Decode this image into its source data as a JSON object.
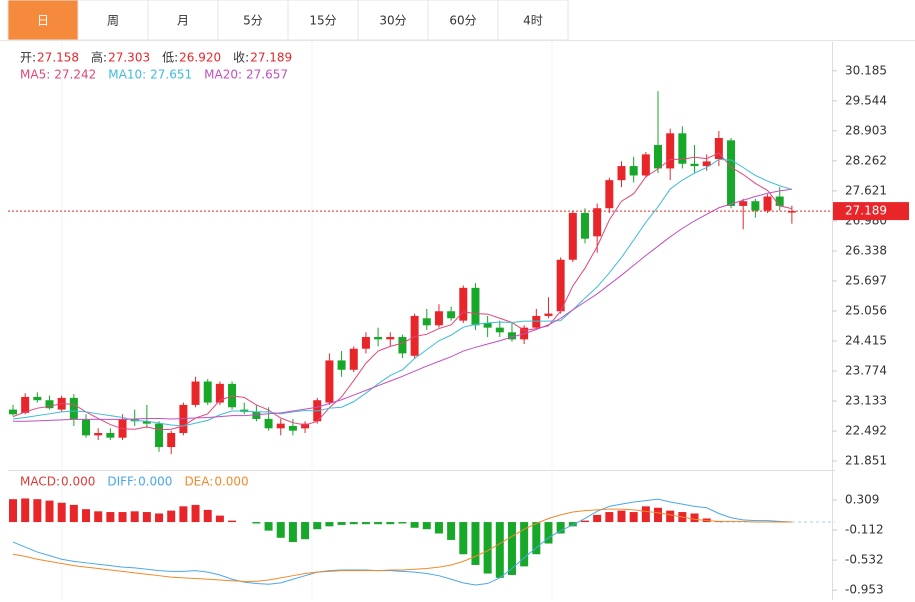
{
  "tabs": [
    "日",
    "周",
    "月",
    "5分",
    "15分",
    "30分",
    "60分",
    "4时"
  ],
  "active_tab": 0,
  "chart_data": [
    {
      "type": "candlestick",
      "info": [
        {
          "label": "开:",
          "value": "27.158"
        },
        {
          "label": "高:",
          "value": "27.303"
        },
        {
          "label": "低:",
          "value": "26.920"
        },
        {
          "label": "收:",
          "value": "27.189"
        }
      ],
      "up_color": "#e8262a",
      "down_color": "#17a82a",
      "candles": [
        [
          22.95,
          23.05,
          22.82,
          22.85
        ],
        [
          22.88,
          23.3,
          22.85,
          23.22
        ],
        [
          23.22,
          23.32,
          23.1,
          23.15
        ],
        [
          23.15,
          23.25,
          22.95,
          22.98
        ],
        [
          22.95,
          23.25,
          22.9,
          23.2
        ],
        [
          23.2,
          23.28,
          22.6,
          22.75
        ],
        [
          22.75,
          22.85,
          22.35,
          22.4
        ],
        [
          22.4,
          22.55,
          22.3,
          22.45
        ],
        [
          22.45,
          22.55,
          22.3,
          22.35
        ],
        [
          22.35,
          22.85,
          22.3,
          22.75
        ],
        [
          22.75,
          22.95,
          22.6,
          22.7
        ],
        [
          22.7,
          23.05,
          22.55,
          22.65
        ],
        [
          22.65,
          22.7,
          22.05,
          22.15
        ],
        [
          22.15,
          22.5,
          22.0,
          22.45
        ],
        [
          22.45,
          23.1,
          22.4,
          23.05
        ],
        [
          23.05,
          23.65,
          23.0,
          23.55
        ],
        [
          23.55,
          23.6,
          23.05,
          23.1
        ],
        [
          23.1,
          23.55,
          23.05,
          23.5
        ],
        [
          23.5,
          23.55,
          22.95,
          23.0
        ],
        [
          22.95,
          23.1,
          22.85,
          22.9
        ],
        [
          22.9,
          23.05,
          22.7,
          22.75
        ],
        [
          22.75,
          23.0,
          22.5,
          22.55
        ],
        [
          22.55,
          22.75,
          22.4,
          22.65
        ],
        [
          22.6,
          22.75,
          22.4,
          22.5
        ],
        [
          22.55,
          22.7,
          22.45,
          22.65
        ],
        [
          22.7,
          23.2,
          22.65,
          23.15
        ],
        [
          23.1,
          24.15,
          23.05,
          24.0
        ],
        [
          24.0,
          24.2,
          23.65,
          23.8
        ],
        [
          23.8,
          24.3,
          23.75,
          24.25
        ],
        [
          24.25,
          24.6,
          24.15,
          24.5
        ],
        [
          24.5,
          24.7,
          24.3,
          24.45
        ],
        [
          24.45,
          24.6,
          24.3,
          24.5
        ],
        [
          24.5,
          24.55,
          24.05,
          24.15
        ],
        [
          24.1,
          25.0,
          24.05,
          24.95
        ],
        [
          24.9,
          25.1,
          24.65,
          24.75
        ],
        [
          24.75,
          25.2,
          24.7,
          25.05
        ],
        [
          25.05,
          25.15,
          24.85,
          24.9
        ],
        [
          24.85,
          25.6,
          24.8,
          25.55
        ],
        [
          25.55,
          25.65,
          24.65,
          24.75
        ],
        [
          24.8,
          24.95,
          24.5,
          24.7
        ],
        [
          24.7,
          24.85,
          24.5,
          24.6
        ],
        [
          24.6,
          24.8,
          24.4,
          24.45
        ],
        [
          24.45,
          24.75,
          24.35,
          24.7
        ],
        [
          24.7,
          25.1,
          24.65,
          24.95
        ],
        [
          24.95,
          25.35,
          24.9,
          25.0
        ],
        [
          25.05,
          26.2,
          25.0,
          26.15
        ],
        [
          26.15,
          27.2,
          26.1,
          27.15
        ],
        [
          27.15,
          27.25,
          26.5,
          26.6
        ],
        [
          26.65,
          27.35,
          26.3,
          27.25
        ],
        [
          27.25,
          27.9,
          27.15,
          27.85
        ],
        [
          27.85,
          28.25,
          27.7,
          28.15
        ],
        [
          28.15,
          28.35,
          27.8,
          27.95
        ],
        [
          27.95,
          28.45,
          27.9,
          28.4
        ],
        [
          28.6,
          29.75,
          28.0,
          28.1
        ],
        [
          28.1,
          28.95,
          27.85,
          28.85
        ],
        [
          28.85,
          29.0,
          28.1,
          28.2
        ],
        [
          28.2,
          28.6,
          28.0,
          28.15
        ],
        [
          28.15,
          28.4,
          28.05,
          28.25
        ],
        [
          28.3,
          28.9,
          28.15,
          28.75
        ],
        [
          28.7,
          28.75,
          27.25,
          27.3
        ],
        [
          27.3,
          27.45,
          26.8,
          27.4
        ],
        [
          27.4,
          27.45,
          27.05,
          27.2
        ],
        [
          27.2,
          27.55,
          27.15,
          27.5
        ],
        [
          27.5,
          27.7,
          27.2,
          27.3
        ],
        [
          27.158,
          27.303,
          26.92,
          27.189
        ]
      ],
      "series": [
        {
          "name": "MA5:",
          "legend_value": "27.242",
          "color": "#e2457b",
          "values": [
            22.8,
            22.9,
            22.98,
            23.02,
            23.08,
            23.06,
            22.9,
            22.76,
            22.63,
            22.54,
            22.53,
            22.58,
            22.52,
            22.53,
            22.6,
            22.77,
            22.86,
            23.15,
            23.24,
            23.21,
            23.05,
            22.94,
            22.77,
            22.67,
            22.62,
            22.7,
            22.99,
            23.22,
            23.57,
            23.94,
            24.2,
            24.3,
            24.37,
            24.51,
            24.56,
            24.68,
            24.76,
            25.04,
            25.0,
            24.99,
            24.9,
            24.81,
            24.64,
            24.68,
            24.74,
            25.05,
            25.59,
            25.97,
            26.43,
            27.0,
            27.4,
            27.56,
            27.92,
            28.09,
            28.29,
            28.3,
            28.34,
            28.31,
            28.43,
            28.13,
            27.97,
            27.78,
            27.63,
            27.3,
            27.242
          ]
        },
        {
          "name": "MA10:",
          "legend_value": "27.651",
          "color": "#3fbcd8",
          "values": [
            22.75,
            22.78,
            22.82,
            22.86,
            22.9,
            22.92,
            22.9,
            22.86,
            22.82,
            22.78,
            22.72,
            22.7,
            22.66,
            22.62,
            22.6,
            22.66,
            22.72,
            22.84,
            22.92,
            22.92,
            22.9,
            22.9,
            22.86,
            22.9,
            22.93,
            22.92,
            22.98,
            23.0,
            23.12,
            23.3,
            23.5,
            23.68,
            23.8,
            24.04,
            24.23,
            24.42,
            24.54,
            24.71,
            24.77,
            24.8,
            24.82,
            24.81,
            24.84,
            24.84,
            24.84,
            24.85,
            25.08,
            25.33,
            25.57,
            25.87,
            26.2,
            26.57,
            26.95,
            27.28,
            27.66,
            27.85,
            28.0,
            28.12,
            28.29,
            28.28,
            28.12,
            27.95,
            27.83,
            27.73,
            27.651
          ]
        },
        {
          "name": "MA20:",
          "legend_value": "27.657",
          "color": "#c34fc1",
          "values": [
            22.7,
            22.7,
            22.71,
            22.72,
            22.73,
            22.74,
            22.74,
            22.74,
            22.74,
            22.74,
            22.75,
            22.76,
            22.76,
            22.75,
            22.76,
            22.77,
            22.78,
            22.8,
            22.82,
            22.82,
            22.84,
            22.86,
            22.88,
            22.92,
            22.96,
            23.0,
            23.08,
            23.16,
            23.26,
            23.36,
            23.46,
            23.56,
            23.66,
            23.77,
            23.88,
            23.98,
            24.08,
            24.2,
            24.28,
            24.35,
            24.42,
            24.5,
            24.57,
            24.66,
            24.76,
            24.9,
            25.08,
            25.25,
            25.42,
            25.62,
            25.82,
            26.03,
            26.24,
            26.44,
            26.64,
            26.82,
            26.98,
            27.12,
            27.26,
            27.34,
            27.42,
            27.5,
            27.57,
            27.62,
            27.657
          ]
        }
      ],
      "ylim": [
        21.66,
        30.8
      ],
      "yticks": [
        30.185,
        29.544,
        28.903,
        28.262,
        27.621,
        {
          "value": 26.98,
          "label": "26.980"
        },
        26.338,
        25.697,
        25.056,
        24.415,
        23.774,
        23.133,
        22.492,
        21.851
      ]
    },
    {
      "type": "macd",
      "name": "MACD:",
      "legend_value": "0.000",
      "legend_color": "#e03a3a",
      "up_color": "#e8262a",
      "down_color": "#17a82a",
      "values": [
        0.32,
        0.33,
        0.32,
        0.3,
        0.27,
        0.24,
        0.18,
        0.15,
        0.14,
        0.14,
        0.15,
        0.14,
        0.12,
        0.16,
        0.22,
        0.24,
        0.17,
        0.09,
        0.02,
        0.0,
        -0.02,
        -0.12,
        -0.22,
        -0.28,
        -0.24,
        -0.1,
        -0.06,
        -0.04,
        -0.03,
        -0.03,
        -0.03,
        -0.03,
        -0.02,
        -0.08,
        -0.1,
        -0.16,
        -0.25,
        -0.45,
        -0.6,
        -0.72,
        -0.78,
        -0.74,
        -0.62,
        -0.45,
        -0.3,
        -0.16,
        -0.06,
        0.02,
        0.1,
        0.14,
        0.16,
        0.14,
        0.22,
        0.2,
        0.16,
        0.14,
        0.12,
        0.05,
        0.01,
        0.0,
        0.0,
        0.005,
        0.0,
        -0.003,
        0.0
      ],
      "series": [
        {
          "name": "DIFF:",
          "legend_value": "0.000",
          "color": "#4aa8e8",
          "values": [
            -0.28,
            -0.35,
            -0.42,
            -0.47,
            -0.52,
            -0.55,
            -0.57,
            -0.59,
            -0.61,
            -0.63,
            -0.64,
            -0.66,
            -0.68,
            -0.69,
            -0.69,
            -0.68,
            -0.7,
            -0.74,
            -0.8,
            -0.84,
            -0.86,
            -0.87,
            -0.85,
            -0.8,
            -0.75,
            -0.7,
            -0.68,
            -0.67,
            -0.67,
            -0.67,
            -0.68,
            -0.68,
            -0.69,
            -0.7,
            -0.72,
            -0.75,
            -0.8,
            -0.85,
            -0.88,
            -0.86,
            -0.78,
            -0.65,
            -0.5,
            -0.36,
            -0.22,
            -0.12,
            -0.04,
            0.05,
            0.15,
            0.22,
            0.25,
            0.28,
            0.3,
            0.32,
            0.28,
            0.25,
            0.22,
            0.2,
            0.12,
            0.06,
            0.03,
            0.02,
            0.02,
            0.01,
            0.0
          ]
        },
        {
          "name": "DEA:",
          "legend_value": "0.000",
          "color": "#f08a2b",
          "values": [
            -0.45,
            -0.48,
            -0.52,
            -0.55,
            -0.58,
            -0.61,
            -0.63,
            -0.65,
            -0.67,
            -0.69,
            -0.71,
            -0.73,
            -0.75,
            -0.77,
            -0.78,
            -0.79,
            -0.8,
            -0.81,
            -0.82,
            -0.83,
            -0.83,
            -0.81,
            -0.78,
            -0.75,
            -0.72,
            -0.7,
            -0.69,
            -0.68,
            -0.68,
            -0.68,
            -0.68,
            -0.67,
            -0.67,
            -0.66,
            -0.65,
            -0.63,
            -0.6,
            -0.55,
            -0.48,
            -0.4,
            -0.3,
            -0.2,
            -0.1,
            -0.02,
            0.05,
            0.1,
            0.14,
            0.16,
            0.17,
            0.18,
            0.18,
            0.17,
            0.15,
            0.13,
            0.1,
            0.07,
            0.04,
            0.02,
            0.01,
            0.01,
            0.01,
            0.0,
            0.0,
            0.0,
            0.0
          ]
        }
      ],
      "ylim": [
        -1.09,
        0.7
      ],
      "yticks": [
        0.309,
        -0.112,
        -0.532,
        -0.953
      ]
    }
  ]
}
